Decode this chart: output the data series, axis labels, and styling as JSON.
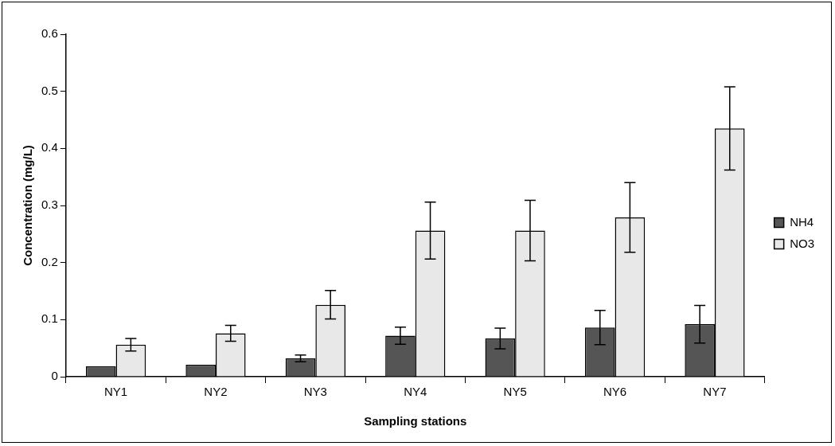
{
  "chart_data": {
    "type": "bar",
    "xlabel": "Sampling stations",
    "ylabel": "Concentration (mg/L)",
    "categories": [
      "NY1",
      "NY2",
      "NY3",
      "NY4",
      "NY5",
      "NY6",
      "NY7"
    ],
    "series": [
      {
        "name": "NH4",
        "color": "#555555",
        "values": [
          0.018,
          0.021,
          0.032,
          0.072,
          0.067,
          0.086,
          0.092
        ],
        "errors": [
          null,
          null,
          0.006,
          0.015,
          0.018,
          0.03,
          0.033
        ]
      },
      {
        "name": "NO3",
        "color": "#e8e8e8",
        "values": [
          0.056,
          0.076,
          0.126,
          0.256,
          0.256,
          0.279,
          0.435
        ],
        "errors": [
          0.011,
          0.014,
          0.025,
          0.05,
          0.053,
          0.061,
          0.073
        ]
      }
    ],
    "ylim": [
      0,
      0.6
    ],
    "yticks": [
      0,
      0.1,
      0.2,
      0.3,
      0.4,
      0.5,
      0.6
    ],
    "grid": false,
    "legend": "right"
  }
}
